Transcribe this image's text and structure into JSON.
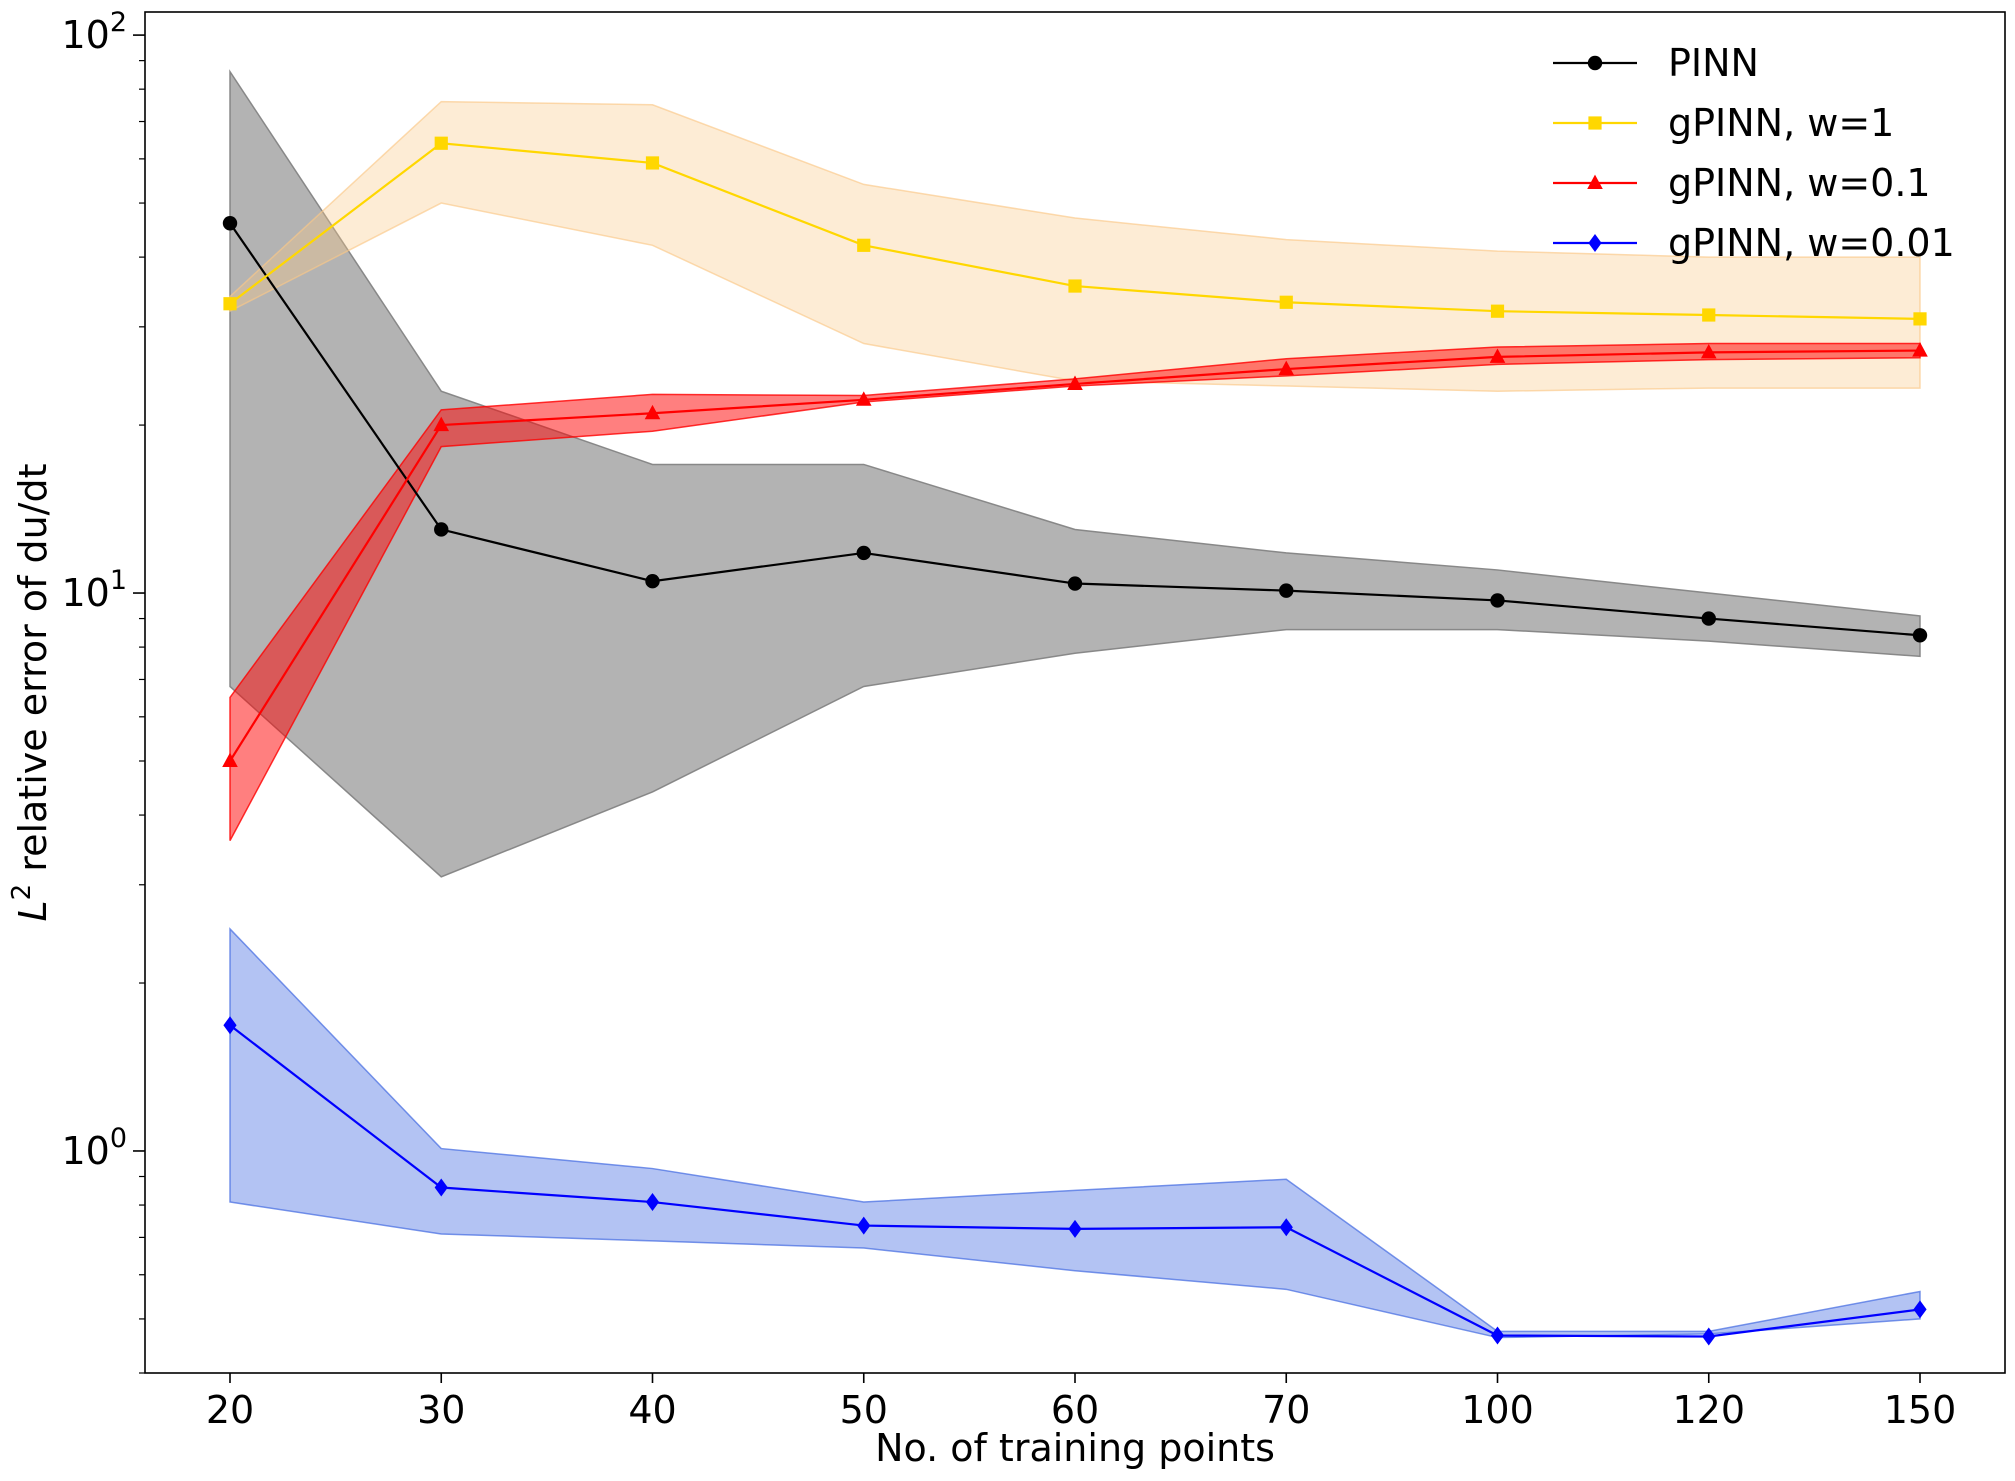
{
  "chart_data": {
    "type": "line",
    "x_tick_labels": [
      "20",
      "30",
      "40",
      "50",
      "60",
      "70",
      "100",
      "120",
      "150"
    ],
    "xlabel": "No. of training points",
    "ylabel_main": "L",
    "ylabel_sup": "2",
    "ylabel_rest": " relative error of du/dt",
    "yscale": "log",
    "ylim": [
      0.4,
      110
    ],
    "y_ticks": [
      {
        "value": 1,
        "base": "10",
        "exp": "0"
      },
      {
        "value": 10,
        "base": "10",
        "exp": "1"
      },
      {
        "value": 100,
        "base": "10",
        "exp": "2"
      }
    ],
    "legend_position": "upper right",
    "series": [
      {
        "name": "PINN",
        "color": "#000000",
        "band_color": "#808080",
        "band_opacity": 0.6,
        "marker": "circle",
        "values": [
          46,
          13,
          10.5,
          11.8,
          10.4,
          10.1,
          9.7,
          9.0,
          8.4
        ],
        "lower": [
          6.8,
          3.1,
          4.4,
          6.8,
          7.8,
          8.6,
          8.6,
          8.2,
          7.7
        ],
        "upper": [
          86,
          23,
          17,
          17,
          13,
          11.8,
          11,
          10,
          9.1
        ]
      },
      {
        "name": "gPINN, w=1",
        "color": "#FFD700",
        "band_color": "#FAC887",
        "band_opacity": 0.35,
        "marker": "square",
        "values": [
          33,
          64,
          59,
          42,
          35.5,
          33.2,
          32,
          31.5,
          31
        ],
        "lower": [
          32,
          50,
          42,
          28,
          24,
          23.5,
          23,
          23.3,
          23.3
        ],
        "upper": [
          34,
          76,
          75,
          54,
          47,
          43,
          41,
          40,
          40
        ]
      },
      {
        "name": "gPINN, w=0.1",
        "color": "#FF0000",
        "band_color": "#FF0000",
        "band_opacity": 0.5,
        "marker": "triangle",
        "values": [
          5.0,
          20,
          21,
          22.2,
          23.7,
          25.2,
          26.5,
          27,
          27.2
        ],
        "lower": [
          3.6,
          18.3,
          19.5,
          22.0,
          23.5,
          24.5,
          25.7,
          26.2,
          26.4
        ],
        "upper": [
          6.5,
          21.3,
          22.7,
          22.6,
          24.2,
          26.3,
          27.6,
          28,
          28
        ]
      },
      {
        "name": "gPINN, w=0.01",
        "color": "#0000FF",
        "band_color": "#4169E1",
        "band_opacity": 0.4,
        "marker": "diamond",
        "values": [
          1.68,
          0.86,
          0.81,
          0.735,
          0.725,
          0.73,
          0.467,
          0.465,
          0.52
        ],
        "lower": [
          0.81,
          0.71,
          0.69,
          0.67,
          0.61,
          0.565,
          0.463,
          0.47,
          0.5
        ],
        "upper": [
          2.5,
          1.01,
          0.93,
          0.81,
          0.85,
          0.89,
          0.475,
          0.475,
          0.56
        ]
      }
    ]
  }
}
